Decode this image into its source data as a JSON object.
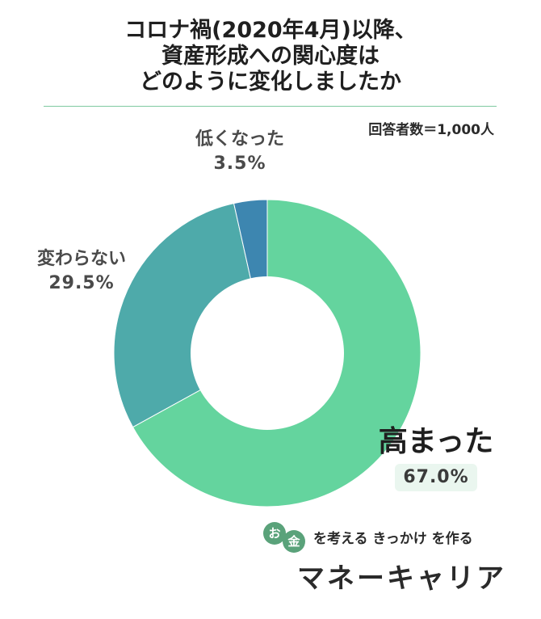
{
  "title": {
    "line1": "コロナ禍(2020年4月)以降、",
    "line2": "資産形成への関心度は",
    "line3": "どのように変化しましたか"
  },
  "respondents": "回答者数＝1,000人",
  "chart_data": {
    "type": "pie",
    "donut": true,
    "slices": [
      {
        "label": "高まった",
        "value": 67.0,
        "value_label": "67.0%",
        "color": "#64d49e"
      },
      {
        "label": "変わらない",
        "value": 29.5,
        "value_label": "29.5%",
        "color": "#4eaaaa"
      },
      {
        "label": "低くなった",
        "value": 3.5,
        "value_label": "3.5%",
        "color": "#3d86b0"
      }
    ]
  },
  "logo": {
    "circle1": "お",
    "circle2": "金",
    "tagline": "を考える きっかけ を作る",
    "brand": "マネーキャリア"
  }
}
